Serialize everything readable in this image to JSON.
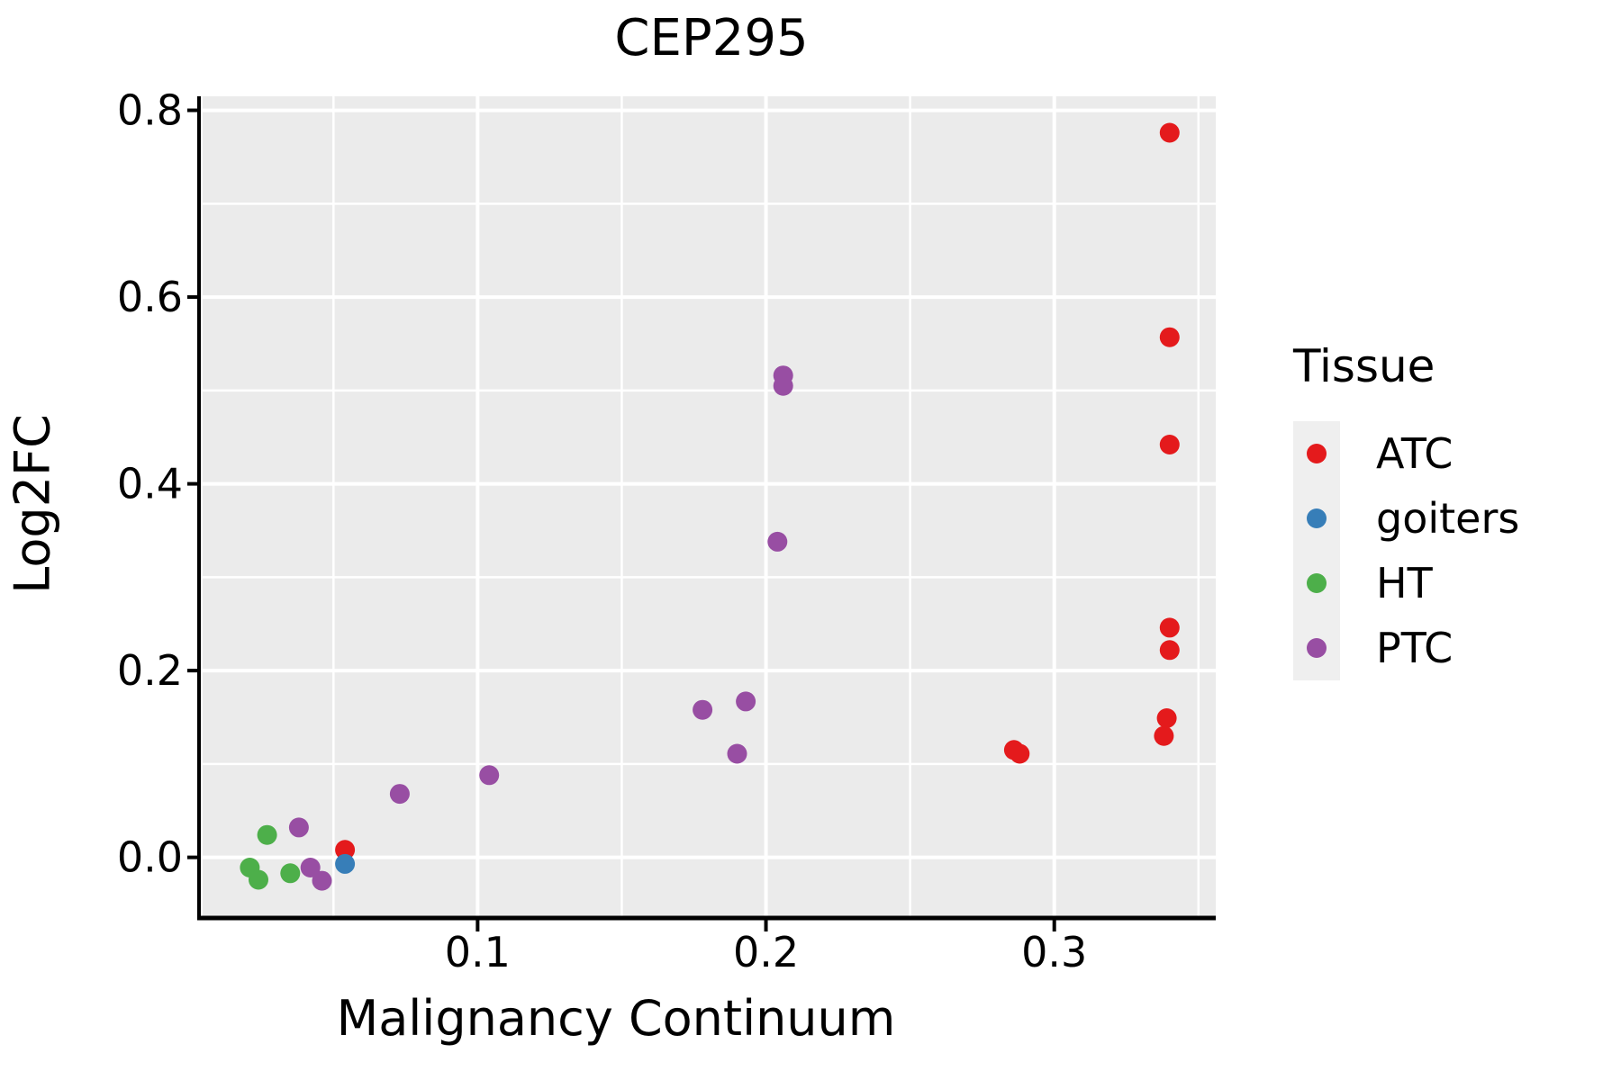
{
  "colors": {
    "panel_bg": "#EBEBEB",
    "grid": "#FFFFFF",
    "axis": "#000000",
    "text": "#000000",
    "legend_key_bg": "#EFEFEF"
  },
  "chart_data": {
    "type": "scatter",
    "title": "CEP295",
    "xlabel": "Malignancy Continuum",
    "ylabel": "Log2FC",
    "xlim": [
      0.004,
      0.356
    ],
    "ylim": [
      -0.063,
      0.815
    ],
    "grid": "on",
    "legend_position": "right",
    "legend_title": "Tissue",
    "x_ticks": [
      {
        "value": 0.1,
        "label": "0.1"
      },
      {
        "value": 0.2,
        "label": "0.2"
      },
      {
        "value": 0.3,
        "label": "0.3"
      }
    ],
    "x_minor_ticks": [
      0.05,
      0.15,
      0.25,
      0.35
    ],
    "y_ticks": [
      {
        "value": 0.0,
        "label": "0.0"
      },
      {
        "value": 0.2,
        "label": "0.2"
      },
      {
        "value": 0.4,
        "label": "0.4"
      },
      {
        "value": 0.6,
        "label": "0.6"
      },
      {
        "value": 0.8,
        "label": "0.8"
      }
    ],
    "y_minor_ticks": [
      0.1,
      0.3,
      0.5,
      0.7
    ],
    "point_radius_px": 11,
    "series": [
      {
        "name": "ATC",
        "color": "#E41A1C",
        "points": [
          [
            0.34,
            0.776
          ],
          [
            0.34,
            0.557
          ],
          [
            0.34,
            0.442
          ],
          [
            0.34,
            0.246
          ],
          [
            0.34,
            0.222
          ],
          [
            0.339,
            0.149
          ],
          [
            0.338,
            0.13
          ],
          [
            0.286,
            0.115
          ],
          [
            0.288,
            0.111
          ],
          [
            0.054,
            0.008
          ]
        ]
      },
      {
        "name": "goiters",
        "color": "#377EB8",
        "points": [
          [
            0.054,
            -0.007
          ]
        ]
      },
      {
        "name": "HT",
        "color": "#4DAF4A",
        "points": [
          [
            0.027,
            0.024
          ],
          [
            0.021,
            -0.011
          ],
          [
            0.024,
            -0.024
          ],
          [
            0.035,
            -0.017
          ]
        ]
      },
      {
        "name": "PTC",
        "color": "#984EA3",
        "points": [
          [
            0.206,
            0.516
          ],
          [
            0.206,
            0.505
          ],
          [
            0.204,
            0.338
          ],
          [
            0.193,
            0.167
          ],
          [
            0.178,
            0.158
          ],
          [
            0.19,
            0.111
          ],
          [
            0.104,
            0.088
          ],
          [
            0.073,
            0.068
          ],
          [
            0.038,
            0.032
          ],
          [
            0.042,
            -0.011
          ],
          [
            0.046,
            -0.025
          ]
        ]
      }
    ]
  }
}
